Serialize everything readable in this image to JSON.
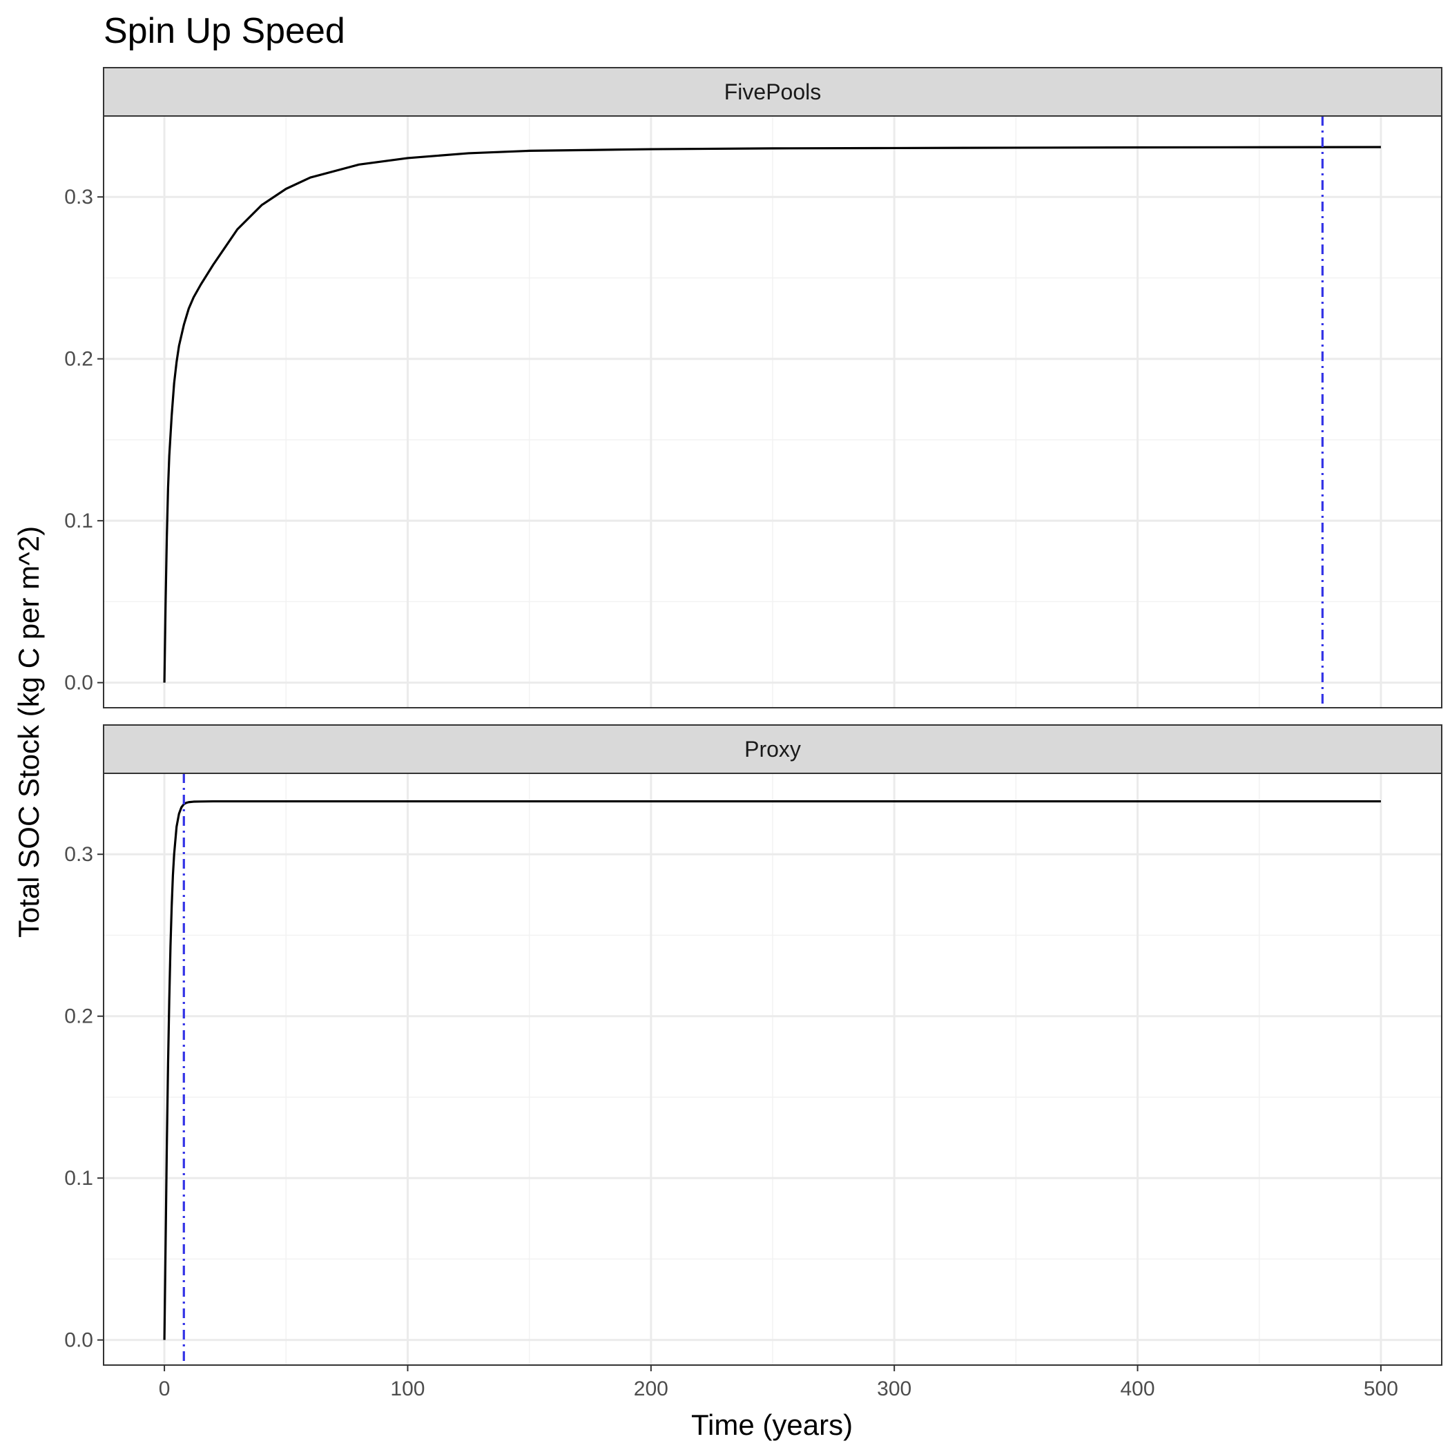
{
  "chart_data": {
    "type": "line",
    "title": "Spin Up Speed",
    "xlabel": "Time (years)",
    "ylabel": "Total SOC Stock (kg C per m^2)",
    "xlim": [
      -25,
      525
    ],
    "ylim": [
      -0.0155,
      0.35
    ],
    "x_ticks": [
      0,
      100,
      200,
      300,
      400,
      500
    ],
    "x_tick_labels": [
      "0",
      "100",
      "200",
      "300",
      "400",
      "500"
    ],
    "y_ticks": [
      0.0,
      0.1,
      0.2,
      0.3
    ],
    "y_tick_labels": [
      "0.0",
      "0.1",
      "0.2",
      "0.3"
    ],
    "grid": true,
    "panels": [
      {
        "name": "FivePools",
        "vline_x": 476,
        "vline_color": "#3333e6",
        "line_color": "#000000",
        "series": [
          {
            "x": [
              0,
              0.5,
              1,
              1.5,
              2,
              3,
              4,
              5,
              6,
              8,
              10,
              12,
              15,
              20,
              25,
              30,
              40,
              50,
              60,
              80,
              100,
              125,
              150,
              175,
              200,
              250,
              300,
              350,
              400,
              450,
              500
            ],
            "y": [
              0.0,
              0.05,
              0.09,
              0.12,
              0.14,
              0.165,
              0.185,
              0.198,
              0.208,
              0.221,
              0.231,
              0.238,
              0.246,
              0.258,
              0.269,
              0.28,
              0.295,
              0.305,
              0.312,
              0.32,
              0.324,
              0.327,
              0.3285,
              0.329,
              0.3295,
              0.33,
              0.3302,
              0.3304,
              0.3306,
              0.3307,
              0.3308
            ]
          }
        ]
      },
      {
        "name": "Proxy",
        "vline_x": 8,
        "vline_color": "#3333e6",
        "line_color": "#000000",
        "series": [
          {
            "x": [
              0,
              0.5,
              1,
              1.5,
              2,
              2.5,
              3,
              3.5,
              4,
              5,
              6,
              7,
              8,
              9,
              10,
              12,
              15,
              20,
              50,
              100,
              200,
              300,
              400,
              500
            ],
            "y": [
              0.0,
              0.06,
              0.12,
              0.17,
              0.21,
              0.243,
              0.268,
              0.287,
              0.3,
              0.317,
              0.325,
              0.329,
              0.331,
              0.3318,
              0.3322,
              0.3325,
              0.3326,
              0.3327,
              0.3327,
              0.3327,
              0.3327,
              0.3327,
              0.3327,
              0.3327
            ]
          }
        ]
      }
    ]
  }
}
